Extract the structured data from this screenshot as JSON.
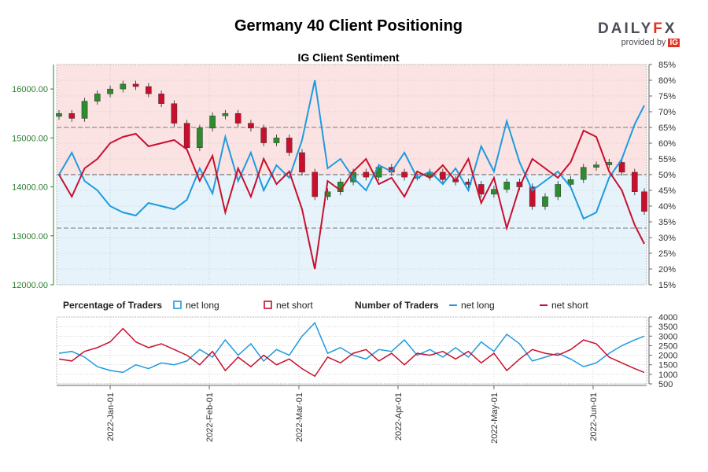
{
  "header": {
    "title": "Germany 40 Client Positioning",
    "subtitle": "IG Client Sentiment",
    "logo_text": "DAILYFX",
    "logo_provided_by": "provided by",
    "logo_ig": "IG"
  },
  "colors": {
    "net_long": "#1e9be0",
    "net_short": "#c8102e",
    "candle_up": "#2e8b2e",
    "candle_down": "#c8102e",
    "short_zone": "#fbe3e3",
    "long_zone": "#e6f3fb",
    "price_axis": "#2e7d32"
  },
  "chart_data": [
    {
      "type": "candlestick",
      "title": "IG Client Sentiment",
      "price_axis": {
        "ylim": [
          12000,
          16500
        ],
        "ticks": [
          "12000.00",
          "13000.00",
          "14000.00",
          "15000.00",
          "16000.00"
        ]
      },
      "sentiment_axis": {
        "ylim": [
          15,
          85
        ],
        "ticks": [
          "15%",
          "20%",
          "25%",
          "30%",
          "35%",
          "40%",
          "45%",
          "50%",
          "55%",
          "60%",
          "65%",
          "70%",
          "75%",
          "80%",
          "85%"
        ]
      },
      "x_dates": [
        "2021-12-16",
        "2021-12-20",
        "2021-12-24",
        "2021-12-28",
        "2022-01-01",
        "2022-01-05",
        "2022-01-09",
        "2022-01-13",
        "2022-01-17",
        "2022-01-21",
        "2022-01-25",
        "2022-01-29",
        "2022-02-02",
        "2022-02-06",
        "2022-02-10",
        "2022-02-14",
        "2022-02-18",
        "2022-02-22",
        "2022-02-26",
        "2022-03-02",
        "2022-03-06",
        "2022-03-10",
        "2022-03-14",
        "2022-03-18",
        "2022-03-22",
        "2022-03-26",
        "2022-03-30",
        "2022-04-03",
        "2022-04-07",
        "2022-04-11",
        "2022-04-15",
        "2022-04-19",
        "2022-04-23",
        "2022-04-27",
        "2022-05-01",
        "2022-05-05",
        "2022-05-09",
        "2022-05-13",
        "2022-05-17",
        "2022-05-21",
        "2022-05-25",
        "2022-05-29",
        "2022-06-02",
        "2022-06-06",
        "2022-06-10",
        "2022-06-14",
        "2022-06-17"
      ],
      "close": [
        15500,
        15400,
        15750,
        15900,
        16000,
        16100,
        16050,
        15900,
        15700,
        15300,
        14800,
        15200,
        15450,
        15500,
        15300,
        15200,
        14900,
        15000,
        14700,
        14300,
        13800,
        13900,
        14100,
        14300,
        14200,
        14400,
        14300,
        14200,
        14200,
        14300,
        14150,
        14100,
        14050,
        13850,
        13950,
        14100,
        14000,
        13600,
        13800,
        14050,
        14150,
        14400,
        14450,
        14500,
        14300,
        13900,
        13500
      ],
      "net_long_pct": [
        50,
        57,
        48,
        45,
        40,
        38,
        37,
        41,
        40,
        39,
        42,
        52,
        44,
        62,
        48,
        57,
        45,
        53,
        49,
        61,
        80,
        52,
        55,
        49,
        45,
        53,
        51,
        57,
        49,
        51,
        47,
        52,
        45,
        59,
        51,
        67,
        54,
        45,
        48,
        51,
        46,
        36,
        38,
        49,
        55,
        66,
        72
      ],
      "net_short_pct": [
        50,
        43,
        52,
        55,
        60,
        62,
        63,
        59,
        60,
        61,
        58,
        48,
        56,
        38,
        52,
        43,
        55,
        47,
        51,
        39,
        20,
        48,
        45,
        51,
        55,
        47,
        49,
        43,
        51,
        49,
        53,
        48,
        55,
        41,
        49,
        33,
        46,
        55,
        52,
        49,
        54,
        64,
        62,
        51,
        45,
        34,
        28
      ],
      "guide_lines_pct": [
        65,
        50,
        33
      ]
    },
    {
      "type": "line",
      "title": "Percentage of Traders / Number of Traders",
      "legend": [
        {
          "group": "Percentage of Traders",
          "items": [
            "net long",
            "net short"
          ]
        },
        {
          "group": "Number of Traders",
          "items": [
            "net long",
            "net short"
          ]
        }
      ],
      "ylim": [
        500,
        4000
      ],
      "y_ticks": [
        "500",
        "1000",
        "1500",
        "2000",
        "2500",
        "3000",
        "3500",
        "4000"
      ],
      "net_long_count": [
        2100,
        2200,
        1900,
        1400,
        1200,
        1100,
        1500,
        1300,
        1600,
        1500,
        1700,
        2300,
        1900,
        2800,
        2000,
        2600,
        1700,
        2300,
        2000,
        3000,
        3700,
        2100,
        2400,
        2000,
        1800,
        2300,
        2200,
        2800,
        2000,
        2300,
        1900,
        2400,
        1900,
        2700,
        2200,
        3100,
        2600,
        1700,
        1900,
        2100,
        1800,
        1400,
        1600,
        2100,
        2500,
        2800,
        3000
      ],
      "net_short_count": [
        1800,
        1700,
        2200,
        2400,
        2700,
        3400,
        2700,
        2400,
        2600,
        2300,
        2000,
        1500,
        2200,
        1200,
        1900,
        1400,
        2000,
        1500,
        1800,
        1300,
        900,
        1900,
        1600,
        2100,
        2300,
        1700,
        2100,
        1500,
        2100,
        2000,
        2200,
        1800,
        2200,
        1600,
        2100,
        1200,
        1800,
        2300,
        2100,
        2000,
        2300,
        2800,
        2600,
        1900,
        1600,
        1300,
        1100
      ]
    }
  ],
  "x_axis": {
    "tick_labels": [
      "2022-Jan-01",
      "2022-Feb-01",
      "2022-Mar-01",
      "2022-Apr-01",
      "2022-May-01",
      "2022-Jun-01"
    ],
    "tick_dates": [
      "2022-01-01",
      "2022-02-01",
      "2022-03-01",
      "2022-04-01",
      "2022-05-01",
      "2022-06-01"
    ]
  },
  "legend": {
    "pct_title": "Percentage of Traders",
    "num_title": "Number of Traders",
    "net_long": "net long",
    "net_short": "net short"
  }
}
